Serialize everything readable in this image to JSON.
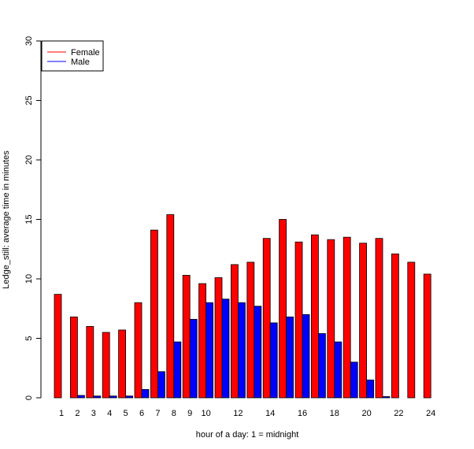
{
  "chart_data": {
    "type": "bar",
    "title": "",
    "xlabel": "hour of a day: 1 = midnight",
    "ylabel": "Ledge_still: average time in minutes",
    "ylim": [
      0,
      30
    ],
    "yticks": [
      "0",
      "5",
      "10",
      "15",
      "20",
      "25",
      "30"
    ],
    "categories": [
      "1",
      "2",
      "3",
      "4",
      "5",
      "6",
      "7",
      "8",
      "9",
      "10",
      "11",
      "12",
      "13",
      "14",
      "15",
      "16",
      "17",
      "18",
      "19",
      "20",
      "21",
      "22",
      "23",
      "24"
    ],
    "xtick_labels": [
      "1",
      "2",
      "3",
      "4",
      "5",
      "6",
      "7",
      "8",
      "9",
      "10",
      "",
      "12",
      "",
      "14",
      "",
      "16",
      "",
      "18",
      "",
      "20",
      "",
      "22",
      "",
      "24"
    ],
    "legend": {
      "position": "top-left"
    },
    "series": [
      {
        "name": "Female",
        "color": "#ff0000",
        "values": [
          8.7,
          6.8,
          6.0,
          5.5,
          5.7,
          8.0,
          14.1,
          15.4,
          10.3,
          9.6,
          10.1,
          11.2,
          11.4,
          13.4,
          15.0,
          13.1,
          13.7,
          13.3,
          13.5,
          13.0,
          13.4,
          12.1,
          11.4,
          10.4
        ]
      },
      {
        "name": "Male",
        "color": "#0000ff",
        "values": [
          0.0,
          0.2,
          0.15,
          0.15,
          0.15,
          0.7,
          2.2,
          4.7,
          6.6,
          8.0,
          8.3,
          8.0,
          7.7,
          6.3,
          6.8,
          7.0,
          5.4,
          4.7,
          3.0,
          1.5,
          0.1,
          0.0,
          0.0,
          0.0
        ]
      }
    ]
  }
}
